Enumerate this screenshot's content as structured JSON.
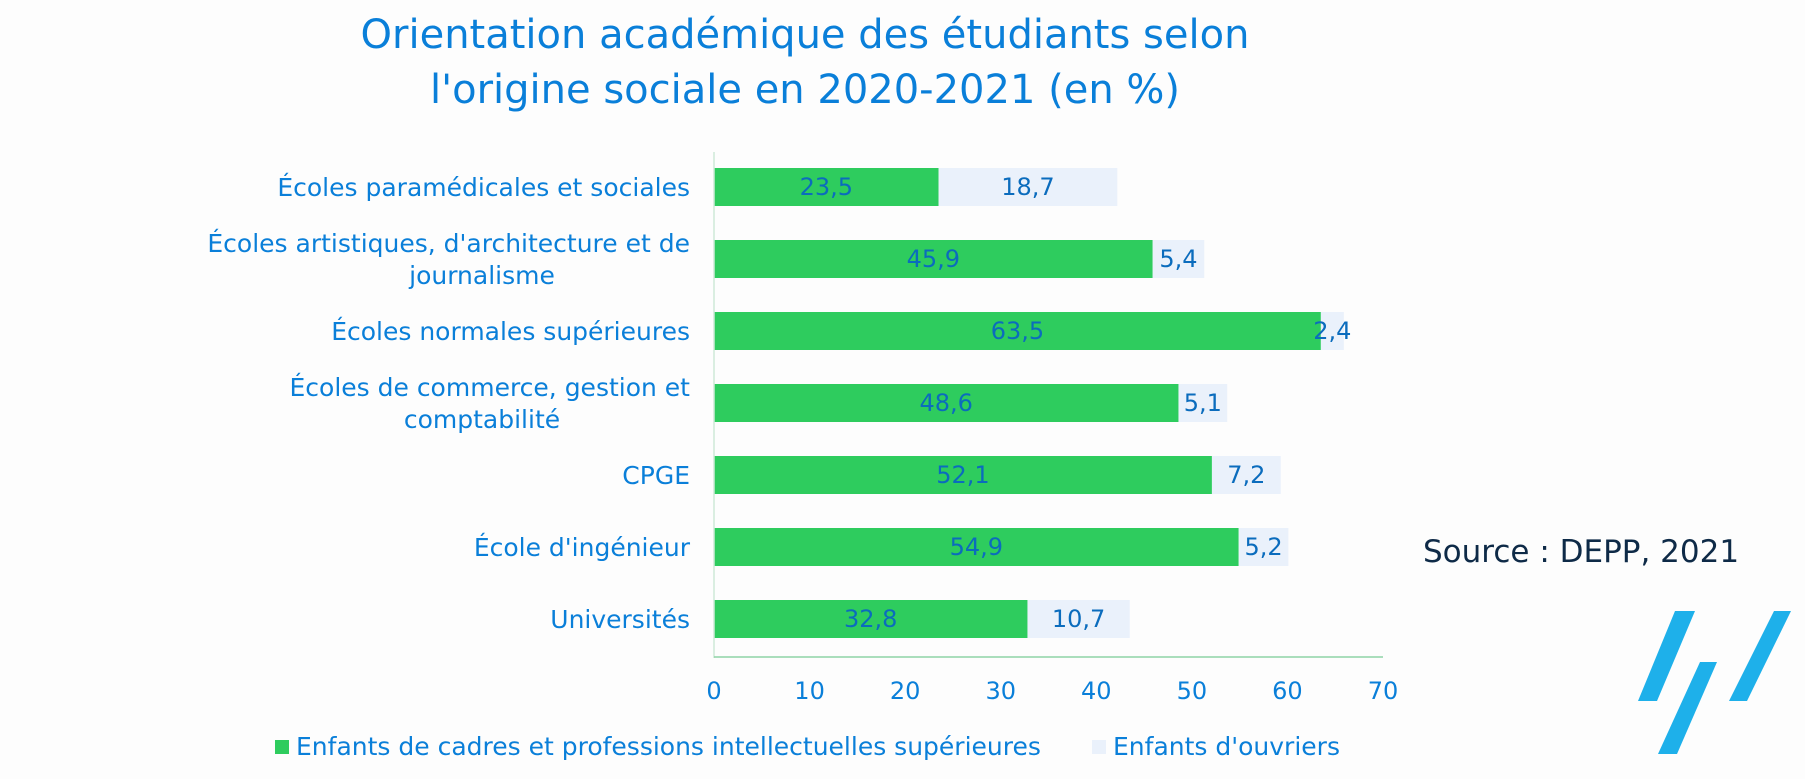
{
  "chart_data": {
    "type": "bar",
    "orientation": "horizontal",
    "stacked": true,
    "title_lines": [
      "Orientation académique des étudiants selon",
      "l'origine sociale en 2020-2021 (en %)"
    ],
    "categories": [
      [
        "Écoles paramédicales et sociales"
      ],
      [
        "Écoles artistiques, d'architecture et de",
        "journalisme"
      ],
      [
        "Écoles normales supérieures"
      ],
      [
        "Écoles de commerce, gestion et",
        "comptabilité"
      ],
      [
        "CPGE"
      ],
      [
        "École d'ingénieur"
      ],
      [
        "Universités"
      ]
    ],
    "series": [
      {
        "name": "Enfants de cadres et professions intellectuelles supérieures",
        "color": "#2ecc5e",
        "values": [
          23.5,
          45.9,
          63.5,
          48.6,
          52.1,
          54.9,
          32.8
        ],
        "labels": [
          "23,5",
          "45,9",
          "63,5",
          "48,6",
          "52,1",
          "54,9",
          "32,8"
        ]
      },
      {
        "name": "Enfants d'ouvriers",
        "color": "#eaf1fb",
        "values": [
          18.7,
          5.4,
          2.4,
          5.1,
          7.2,
          5.2,
          10.7
        ],
        "labels": [
          "18,7",
          "5,4",
          "2,4",
          "5,1",
          "7,2",
          "5,2",
          "10,7"
        ]
      }
    ],
    "xlim": [
      0,
      70
    ],
    "xticks": [
      0,
      10,
      20,
      30,
      40,
      50,
      60,
      70
    ],
    "legend_position": "bottom",
    "grid": false
  },
  "source": "Source : DEPP, 2021",
  "colors": {
    "text": "#0a7fd9",
    "axis": "#8fd3a6",
    "logo": "#1eb0ea",
    "source": "#0e2a47"
  },
  "logo_icon": "diagonal-stripes-logo"
}
